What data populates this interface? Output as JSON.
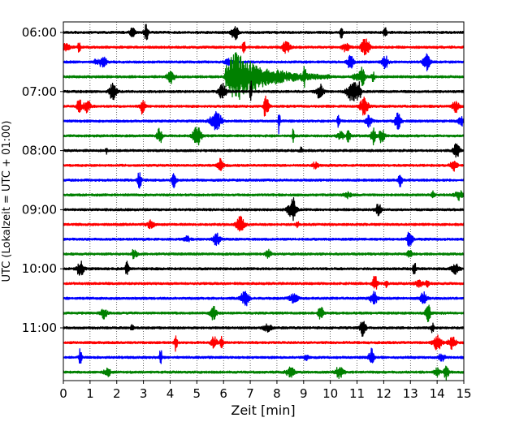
{
  "chart_data": {
    "type": "line",
    "title": "",
    "xlabel": "Zeit  [min]",
    "ylabel": "UTC (Lokalzeit = UTC + 01:00)",
    "xlim": [
      0,
      15
    ],
    "x_ticks": [
      "0",
      "1",
      "2",
      "3",
      "4",
      "5",
      "6",
      "7",
      "8",
      "9",
      "10",
      "11",
      "12",
      "13",
      "14",
      "15"
    ],
    "y_tick_labels": [
      "06:00",
      "07:00",
      "08:00",
      "09:00",
      "10:00",
      "11:00"
    ],
    "trace_interval_min": 15,
    "first_trace": "06:00",
    "last_trace": "11:45",
    "trace_color_cycle": [
      "#000000",
      "#ff0000",
      "#0000ff",
      "#008000"
    ],
    "grid": "vertical dotted lines at each minute",
    "legend": "none",
    "events": [
      {
        "trace": "06:45",
        "start_min": 6.0,
        "peak_min": 6.4,
        "decay_end_min": 10.0,
        "color": "#008000",
        "description_level": "large"
      },
      {
        "trace": "07:00",
        "start_min": 10.5,
        "peak_min": 10.8,
        "color": "#000000",
        "description_level": "medium"
      }
    ]
  }
}
